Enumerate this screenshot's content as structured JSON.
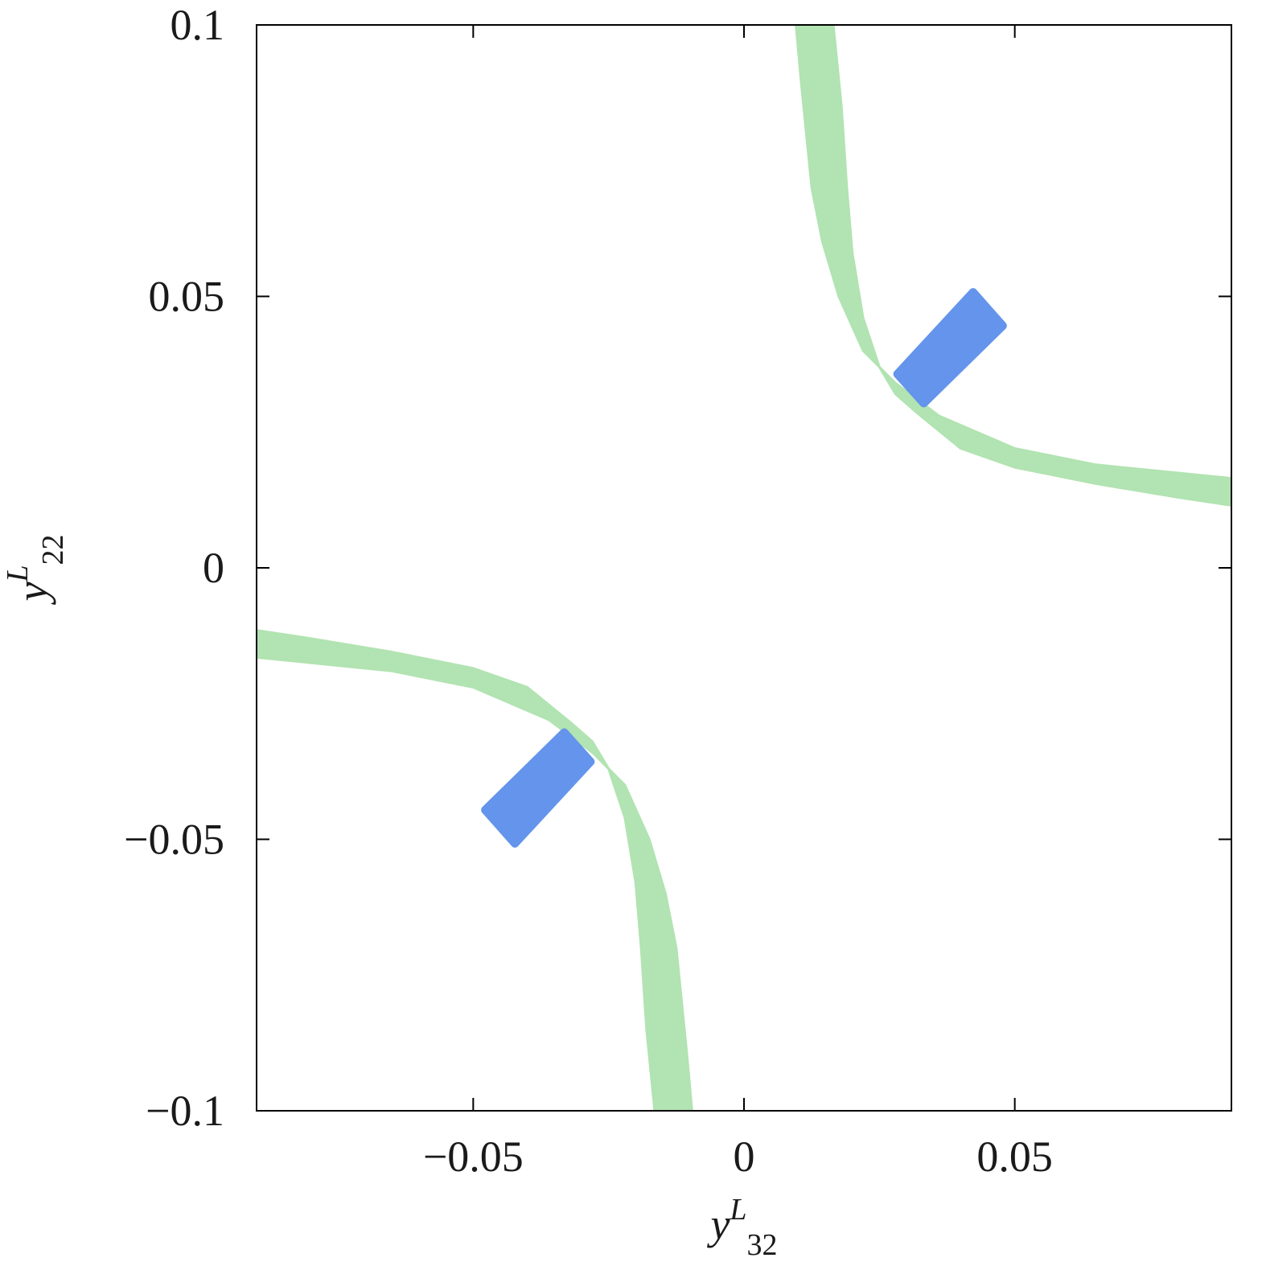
{
  "chart_data": {
    "type": "scatter",
    "title": "",
    "xlabel": {
      "base": "y",
      "sup": "L",
      "sub": "32"
    },
    "ylabel": {
      "base": "y",
      "sup": "L",
      "sub": "22"
    },
    "xlim": [
      -0.09,
      0.09
    ],
    "ylim": [
      -0.1,
      0.1
    ],
    "grid": false,
    "legend": "none",
    "x_ticks": [
      {
        "value": -0.05,
        "label": "−0.05"
      },
      {
        "value": 0,
        "label": "0"
      },
      {
        "value": 0.05,
        "label": "0.05"
      }
    ],
    "y_ticks": [
      {
        "value": 0.1,
        "label": "0.1"
      },
      {
        "value": 0.05,
        "label": "0.05"
      },
      {
        "value": 0,
        "label": "0"
      },
      {
        "value": -0.05,
        "label": "−0.05"
      },
      {
        "value": -0.1,
        "label": "−0.1"
      }
    ],
    "series": [
      {
        "color": "#b2e3b2",
        "description_region": "hyperbolic band: product y32*y22 between bounds",
        "regions": [
          {
            "outer": [
              [
                0.0096,
                0.1
              ],
              [
                0.0105,
                0.09
              ],
              [
                0.0115,
                0.08
              ],
              [
                0.0125,
                0.07
              ],
              [
                0.0145,
                0.06
              ],
              [
                0.0175,
                0.05
              ],
              [
                0.022,
                0.04
              ],
              [
                0.028,
                0.034
              ],
              [
                0.036,
                0.028
              ],
              [
                0.05,
                0.022
              ],
              [
                0.065,
                0.019
              ],
              [
                0.08,
                0.0175
              ],
              [
                0.09,
                0.0165
              ]
            ],
            "inner": [
              [
                0.09,
                0.0115
              ],
              [
                0.08,
                0.013
              ],
              [
                0.065,
                0.0155
              ],
              [
                0.05,
                0.0185
              ],
              [
                0.04,
                0.022
              ],
              [
                0.032,
                0.0285
              ],
              [
                0.028,
                0.032
              ],
              [
                0.025,
                0.037
              ],
              [
                0.022,
                0.046
              ],
              [
                0.02,
                0.058
              ],
              [
                0.019,
                0.07
              ],
              [
                0.018,
                0.085
              ],
              [
                0.0165,
                0.1
              ]
            ]
          },
          {
            "outer": [
              [
                -0.0096,
                -0.1
              ],
              [
                -0.0105,
                -0.09
              ],
              [
                -0.0115,
                -0.08
              ],
              [
                -0.0125,
                -0.07
              ],
              [
                -0.0145,
                -0.06
              ],
              [
                -0.0175,
                -0.05
              ],
              [
                -0.022,
                -0.04
              ],
              [
                -0.028,
                -0.034
              ],
              [
                -0.036,
                -0.028
              ],
              [
                -0.05,
                -0.022
              ],
              [
                -0.065,
                -0.019
              ],
              [
                -0.08,
                -0.0175
              ],
              [
                -0.09,
                -0.0165
              ]
            ],
            "inner": [
              [
                -0.09,
                -0.0115
              ],
              [
                -0.08,
                -0.013
              ],
              [
                -0.065,
                -0.0155
              ],
              [
                -0.05,
                -0.0185
              ],
              [
                -0.04,
                -0.022
              ],
              [
                -0.032,
                -0.0285
              ],
              [
                -0.028,
                -0.032
              ],
              [
                -0.025,
                -0.037
              ],
              [
                -0.022,
                -0.046
              ],
              [
                -0.02,
                -0.058
              ],
              [
                -0.019,
                -0.07
              ],
              [
                -0.018,
                -0.085
              ],
              [
                -0.0165,
                -0.1
              ]
            ]
          }
        ]
      },
      {
        "color": "#6494eb",
        "regions": [
          {
            "corners": [
              [
                0.0423,
                0.0508
              ],
              [
                0.0478,
                0.0446
              ],
              [
                0.0332,
                0.0303
              ],
              [
                0.0283,
                0.0357
              ]
            ]
          },
          {
            "corners": [
              [
                -0.0423,
                -0.0508
              ],
              [
                -0.0478,
                -0.0446
              ],
              [
                -0.0332,
                -0.0303
              ],
              [
                -0.0283,
                -0.0357
              ]
            ]
          }
        ]
      }
    ]
  }
}
